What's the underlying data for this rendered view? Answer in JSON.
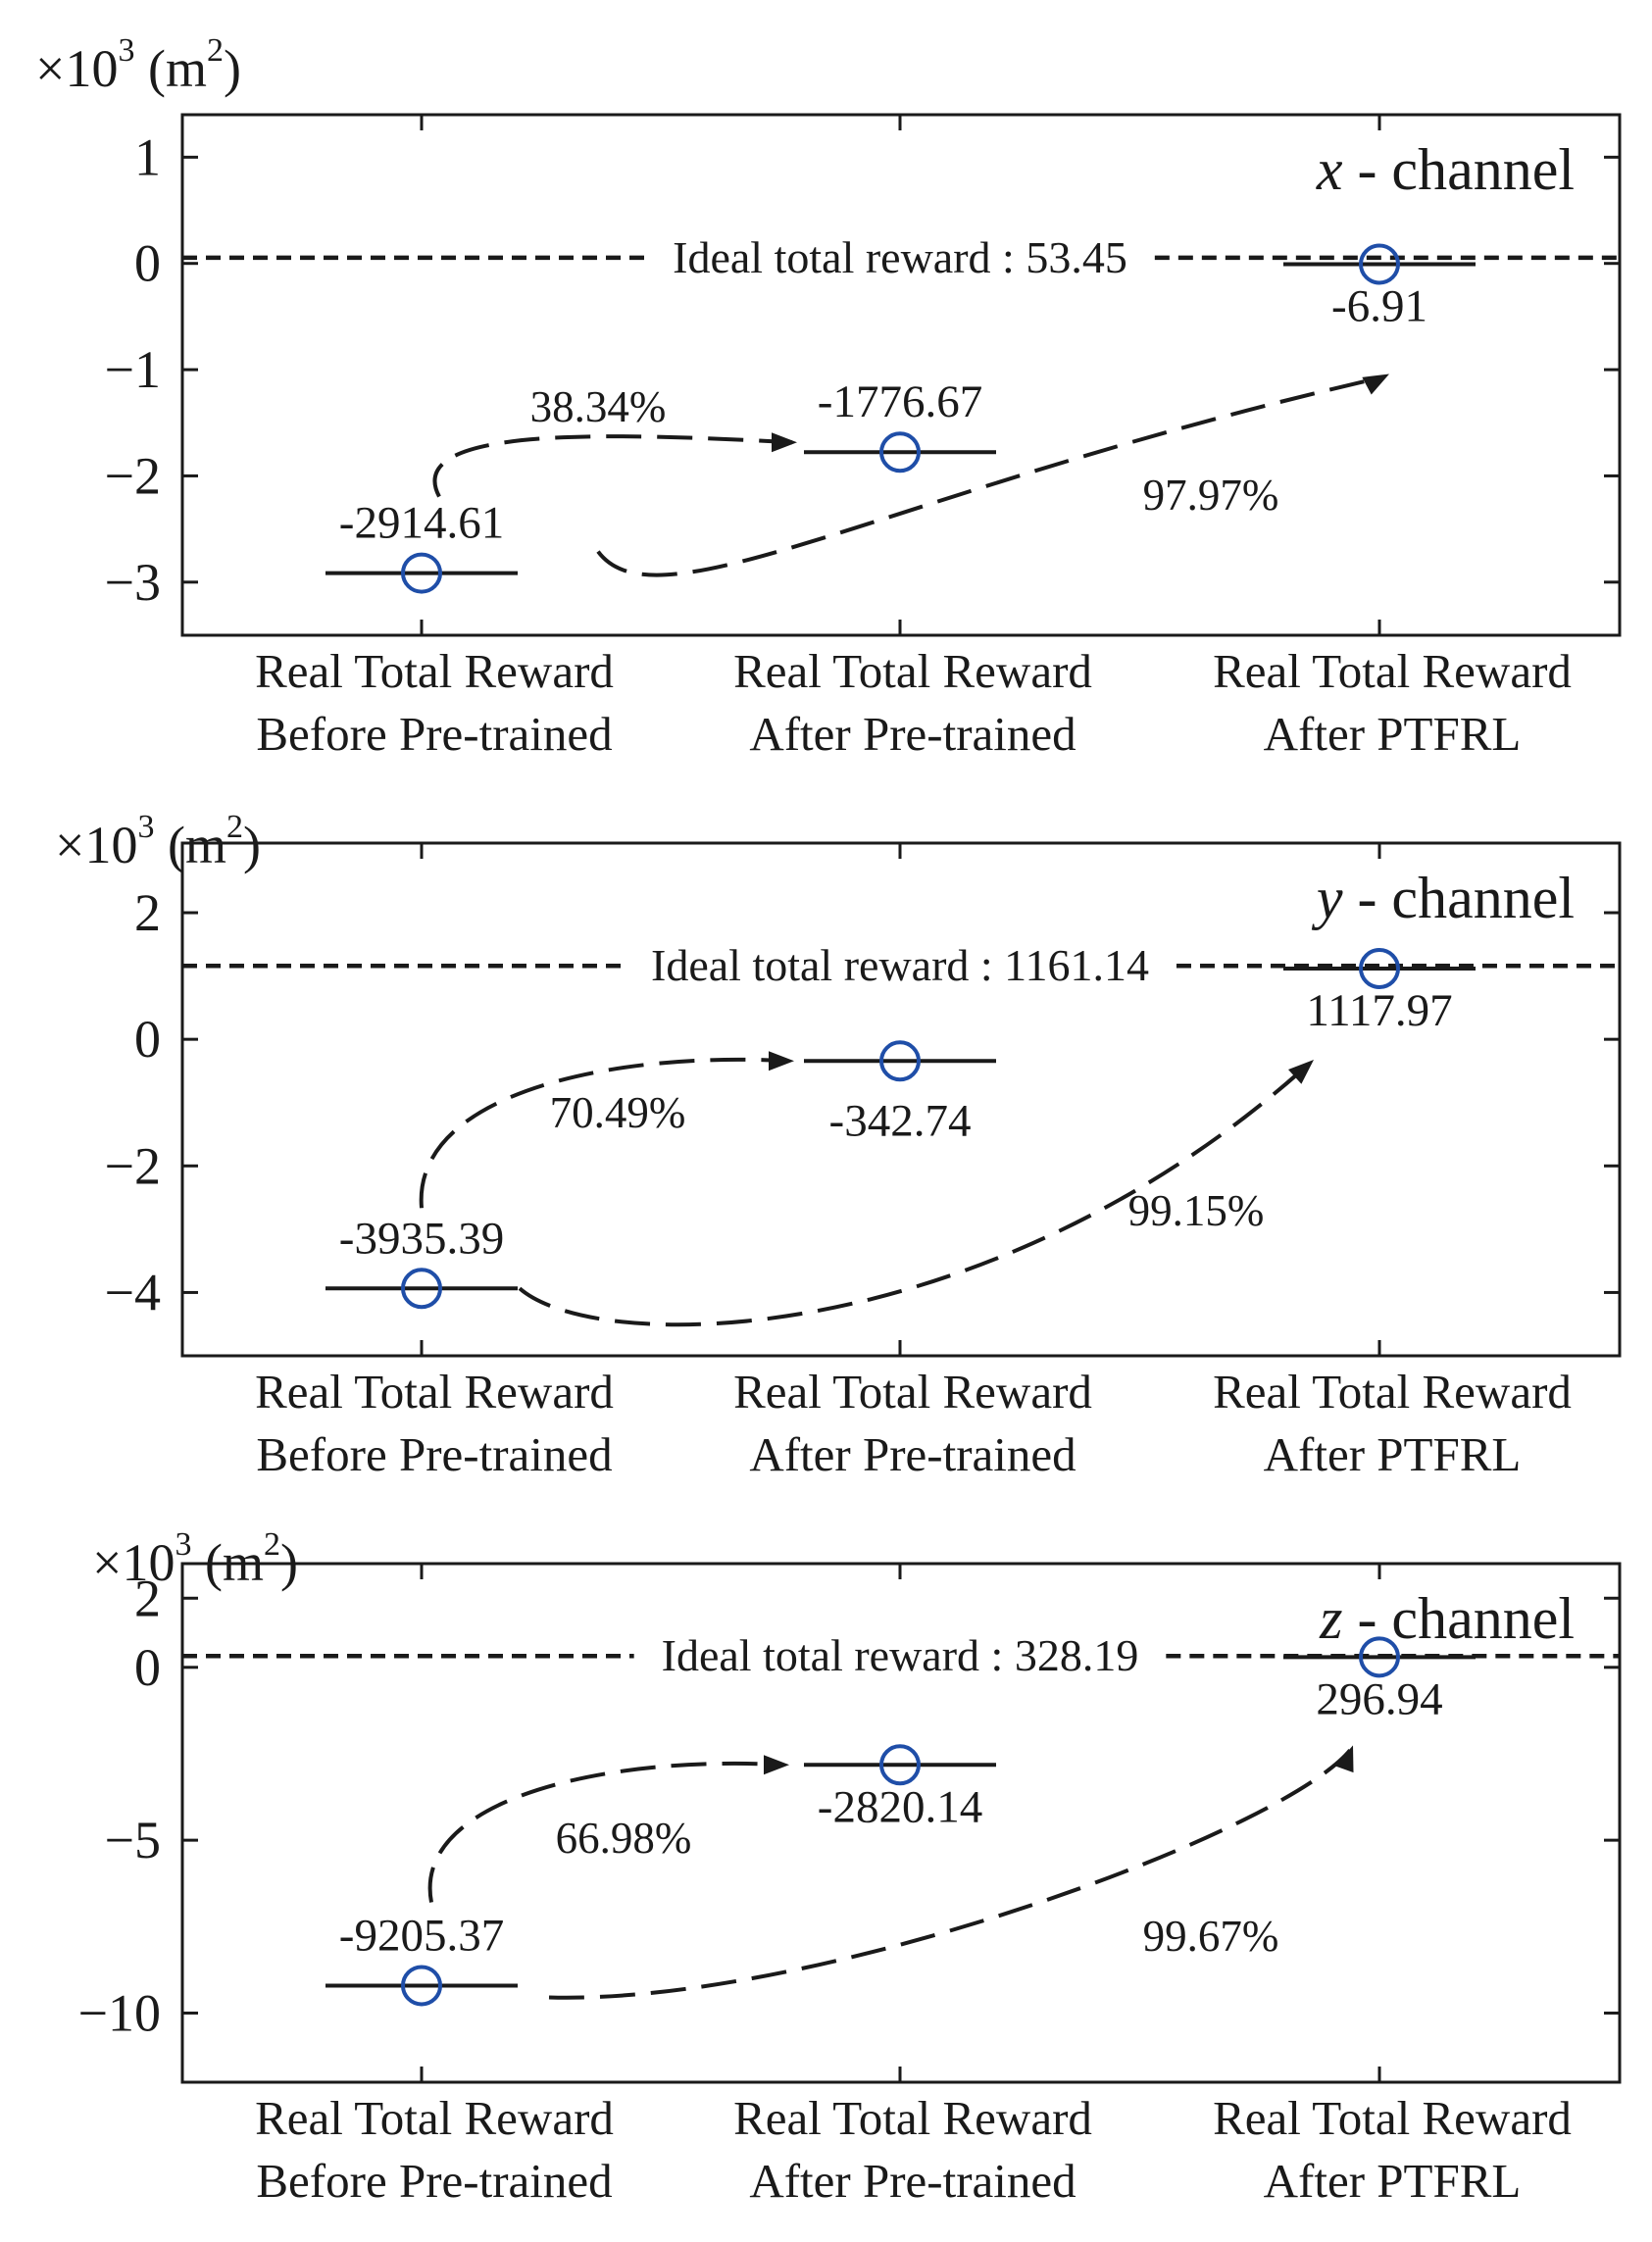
{
  "chart_data": [
    {
      "type": "scatter",
      "channel": "x - channel",
      "channel_var": "x",
      "channel_rest": " - channel",
      "unit_label": {
        "prefix": "×10",
        "exp": "3",
        "mid": " (m",
        "exp2": "2",
        "suffix": ")"
      },
      "categories": [
        [
          "Real Total Reward",
          "Before Pre-trained"
        ],
        [
          "Real Total Reward",
          "After Pre-trained"
        ],
        [
          "Real Total Reward",
          "After PTFRL"
        ]
      ],
      "values": [
        -2914.61,
        -1776.67,
        -6.91
      ],
      "value_labels": [
        "-2914.61",
        "-1776.67",
        "-6.91"
      ],
      "ideal": {
        "value": 53.45,
        "label": "Ideal total reward : 53.45"
      },
      "improvements": [
        {
          "from": 0,
          "to": 1,
          "label": "38.34%"
        },
        {
          "from": 0,
          "to": 2,
          "label": "97.97%"
        }
      ],
      "ylim": [
        -3.5,
        1.4
      ],
      "yticks": [
        1,
        0,
        -1,
        -2,
        -3
      ],
      "ytick_labels": [
        "1",
        "0",
        "−1",
        "−2",
        "−3"
      ],
      "yscale": 1000
    },
    {
      "type": "scatter",
      "channel": "y - channel",
      "channel_var": "y",
      "channel_rest": " - channel",
      "unit_label": {
        "prefix": "×10",
        "exp": "3",
        "mid": " (m",
        "exp2": "2",
        "suffix": ")"
      },
      "categories": [
        [
          "Real Total Reward",
          "Before Pre-trained"
        ],
        [
          "Real Total Reward",
          "After Pre-trained"
        ],
        [
          "Real Total Reward",
          "After PTFRL"
        ]
      ],
      "values": [
        -3935.39,
        -342.74,
        1117.97
      ],
      "value_labels": [
        "-3935.39",
        "-342.74",
        "1117.97"
      ],
      "ideal": {
        "value": 1161.14,
        "label": "Ideal total reward : 1161.14"
      },
      "improvements": [
        {
          "from": 0,
          "to": 1,
          "label": "70.49%"
        },
        {
          "from": 0,
          "to": 2,
          "label": "99.15%"
        }
      ],
      "ylim": [
        -5,
        3.1
      ],
      "yticks": [
        2,
        0,
        -2,
        -4
      ],
      "ytick_labels": [
        "2",
        "0",
        "−2",
        "−4"
      ],
      "yscale": 1000
    },
    {
      "type": "scatter",
      "channel": "z - channel",
      "channel_var": "z",
      "channel_rest": " - channel",
      "unit_label": {
        "prefix": "×10",
        "exp": "3",
        "mid": " (m",
        "exp2": "2",
        "suffix": ")"
      },
      "categories": [
        [
          "Real Total Reward",
          "Before Pre-trained"
        ],
        [
          "Real Total Reward",
          "After Pre-trained"
        ],
        [
          "Real Total Reward",
          "After PTFRL"
        ]
      ],
      "values": [
        -9205.37,
        -2820.14,
        296.94
      ],
      "value_labels": [
        "-9205.37",
        "-2820.14",
        "296.94"
      ],
      "ideal": {
        "value": 328.19,
        "label": "Ideal total reward : 328.19"
      },
      "improvements": [
        {
          "from": 0,
          "to": 1,
          "label": "66.98%"
        },
        {
          "from": 0,
          "to": 2,
          "label": "99.67%"
        }
      ],
      "ylim": [
        -12,
        3
      ],
      "yticks": [
        2,
        0,
        -5,
        -10
      ],
      "ytick_labels": [
        "2",
        "0",
        "−5",
        "−10"
      ],
      "yscale": 1000
    }
  ]
}
